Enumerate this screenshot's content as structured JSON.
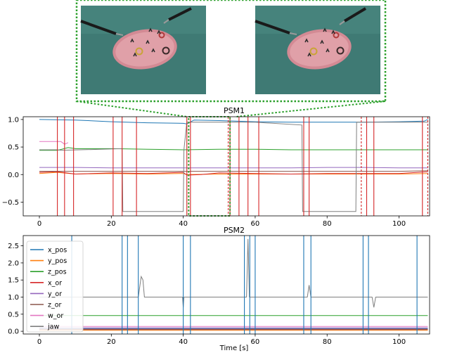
{
  "figure": {
    "colors": {
      "x_pos": "#1f77b4",
      "y_pos": "#ff7f0e",
      "z_pos": "#2ca02c",
      "x_or": "#d62728",
      "y_or": "#9467bd",
      "z_or": "#8c564b",
      "w_or": "#e377c2",
      "jaw": "#7f7f7f",
      "zoom_box": "#2ca02c",
      "psm1_marker": "#d62728",
      "psm2_marker": "#1f77b4"
    },
    "images": [
      {
        "name": "surgical-scene-left",
        "icon": "camera-frame"
      },
      {
        "name": "surgical-scene-right",
        "icon": "camera-frame"
      }
    ]
  },
  "chart_data": [
    {
      "type": "line",
      "title": "PSM1",
      "xlabel": "",
      "ylabel": "",
      "xlim": [
        -4.5,
        108.5
      ],
      "ylim": [
        -0.75,
        1.05
      ],
      "xticks": [
        0,
        20,
        40,
        60,
        80,
        100
      ],
      "yticks": [
        1.0,
        0.5,
        0.0,
        -0.5
      ],
      "ytick_labels": [
        "1.0",
        "0.5",
        "0.0",
        "−0.5"
      ],
      "grid": false,
      "series": [
        {
          "name": "x_pos",
          "x": [
            0,
            10,
            20,
            30,
            40,
            41,
            43,
            50,
            60,
            70,
            80,
            90,
            100,
            107,
            108
          ],
          "y": [
            1.0,
            0.99,
            0.96,
            0.94,
            0.93,
            0.92,
            0.99,
            0.98,
            0.96,
            0.95,
            0.95,
            0.95,
            0.96,
            0.97,
            1.0
          ]
        },
        {
          "name": "y_pos",
          "x": [
            0,
            5,
            10,
            20,
            30,
            40,
            41,
            50,
            60,
            70,
            80,
            90,
            100,
            108
          ],
          "y": [
            0.02,
            0.04,
            0.01,
            0.02,
            0.01,
            0.02,
            0.0,
            0.01,
            0.01,
            0.01,
            0.01,
            0.01,
            0.01,
            0.02
          ]
        },
        {
          "name": "z_pos",
          "x": [
            0,
            5,
            8,
            10,
            20,
            30,
            40,
            50,
            60,
            70,
            80,
            90,
            100,
            108
          ],
          "y": [
            0.44,
            0.44,
            0.49,
            0.47,
            0.47,
            0.46,
            0.45,
            0.46,
            0.46,
            0.45,
            0.45,
            0.45,
            0.45,
            0.45
          ]
        },
        {
          "name": "x_or",
          "x": [
            0,
            5,
            10,
            20,
            30,
            40,
            41,
            45,
            50,
            60,
            70,
            80,
            90,
            100,
            108
          ],
          "y": [
            0.04,
            0.05,
            0.01,
            0.03,
            0.02,
            0.04,
            -0.01,
            0.0,
            0.03,
            0.02,
            0.01,
            0.02,
            0.02,
            0.02,
            0.05
          ]
        },
        {
          "name": "y_or",
          "x": [
            0,
            10,
            20,
            30,
            40,
            50,
            60,
            70,
            80,
            90,
            100,
            108
          ],
          "y": [
            0.13,
            0.13,
            0.12,
            0.12,
            0.12,
            0.12,
            0.12,
            0.12,
            0.13,
            0.13,
            0.12,
            0.12
          ]
        },
        {
          "name": "z_or",
          "x": [
            0,
            10,
            20,
            30,
            40,
            50,
            60,
            70,
            80,
            90,
            100,
            108
          ],
          "y": [
            0.06,
            0.06,
            0.06,
            0.06,
            0.06,
            0.06,
            0.06,
            0.06,
            0.06,
            0.06,
            0.06,
            0.07
          ]
        },
        {
          "name": "w_or",
          "x": [
            0,
            3,
            6,
            7,
            8
          ],
          "y": [
            0.6,
            0.6,
            0.6,
            0.55,
            0.58
          ]
        },
        {
          "name": "jaw",
          "x": [
            0,
            5,
            6,
            23,
            23.2,
            40,
            40.2,
            41,
            60,
            73,
            73.2,
            88,
            88.2,
            107,
            107.2,
            108
          ],
          "y": [
            0.45,
            0.45,
            0.44,
            0.47,
            -0.67,
            -0.67,
            0.45,
            0.95,
            0.95,
            0.9,
            -0.67,
            -0.67,
            0.95,
            0.95,
            0.95,
            0.95
          ]
        }
      ],
      "vlines_solid": [
        5,
        7,
        9.5,
        20.5,
        23,
        27,
        41,
        42,
        53,
        55.5,
        58,
        61,
        73.5,
        75,
        91,
        93,
        106.5
      ],
      "vlines_dashed": [
        52.5,
        89.5,
        108
      ],
      "zoom_box_x": [
        41.5,
        53
      ]
    },
    {
      "type": "line",
      "title": "PSM2",
      "xlabel": "Time [s]",
      "ylabel": "",
      "xlim": [
        -4.5,
        108.5
      ],
      "ylim": [
        -0.08,
        2.8
      ],
      "xticks": [
        0,
        20,
        40,
        60,
        80,
        100
      ],
      "yticks": [
        0.0,
        0.5,
        1.0,
        1.5,
        2.0,
        2.5
      ],
      "ytick_labels": [
        "0.0",
        "0.5",
        "1.0",
        "1.5",
        "2.0",
        "2.5"
      ],
      "grid": false,
      "legend_position": "upper-left",
      "series": [
        {
          "name": "x_pos",
          "x": [
            0,
            108
          ],
          "y": [
            0.08,
            0.08
          ]
        },
        {
          "name": "y_pos",
          "x": [
            0,
            108
          ],
          "y": [
            0.03,
            0.03
          ]
        },
        {
          "name": "z_pos",
          "x": [
            0,
            108
          ],
          "y": [
            0.46,
            0.46
          ]
        },
        {
          "name": "x_or",
          "x": [
            0,
            108
          ],
          "y": [
            0.06,
            0.06
          ]
        },
        {
          "name": "y_or",
          "x": [
            0,
            108
          ],
          "y": [
            0.1,
            0.1
          ]
        },
        {
          "name": "z_or",
          "x": [
            0,
            108
          ],
          "y": [
            0.05,
            0.05
          ]
        },
        {
          "name": "w_or",
          "x": [
            0,
            108
          ],
          "y": [
            0.14,
            0.14
          ]
        },
        {
          "name": "jaw",
          "x": [
            0,
            27.5,
            28.3,
            28.8,
            29.2,
            39.8,
            40,
            40.2,
            57.6,
            58,
            58.4,
            74.5,
            75,
            75.5,
            92.5,
            93,
            93.5,
            108
          ],
          "y": [
            1.0,
            1.0,
            1.6,
            1.5,
            1.0,
            1.0,
            0.7,
            1.0,
            1.0,
            2.7,
            1.0,
            1.0,
            1.35,
            1.0,
            1.0,
            0.7,
            1.0,
            1.0
          ]
        }
      ],
      "vlines_solid": [
        9,
        23,
        24.5,
        27.5,
        40,
        42,
        57,
        58.5,
        60,
        73.5,
        75.5,
        90,
        91.5,
        105
      ]
    }
  ]
}
